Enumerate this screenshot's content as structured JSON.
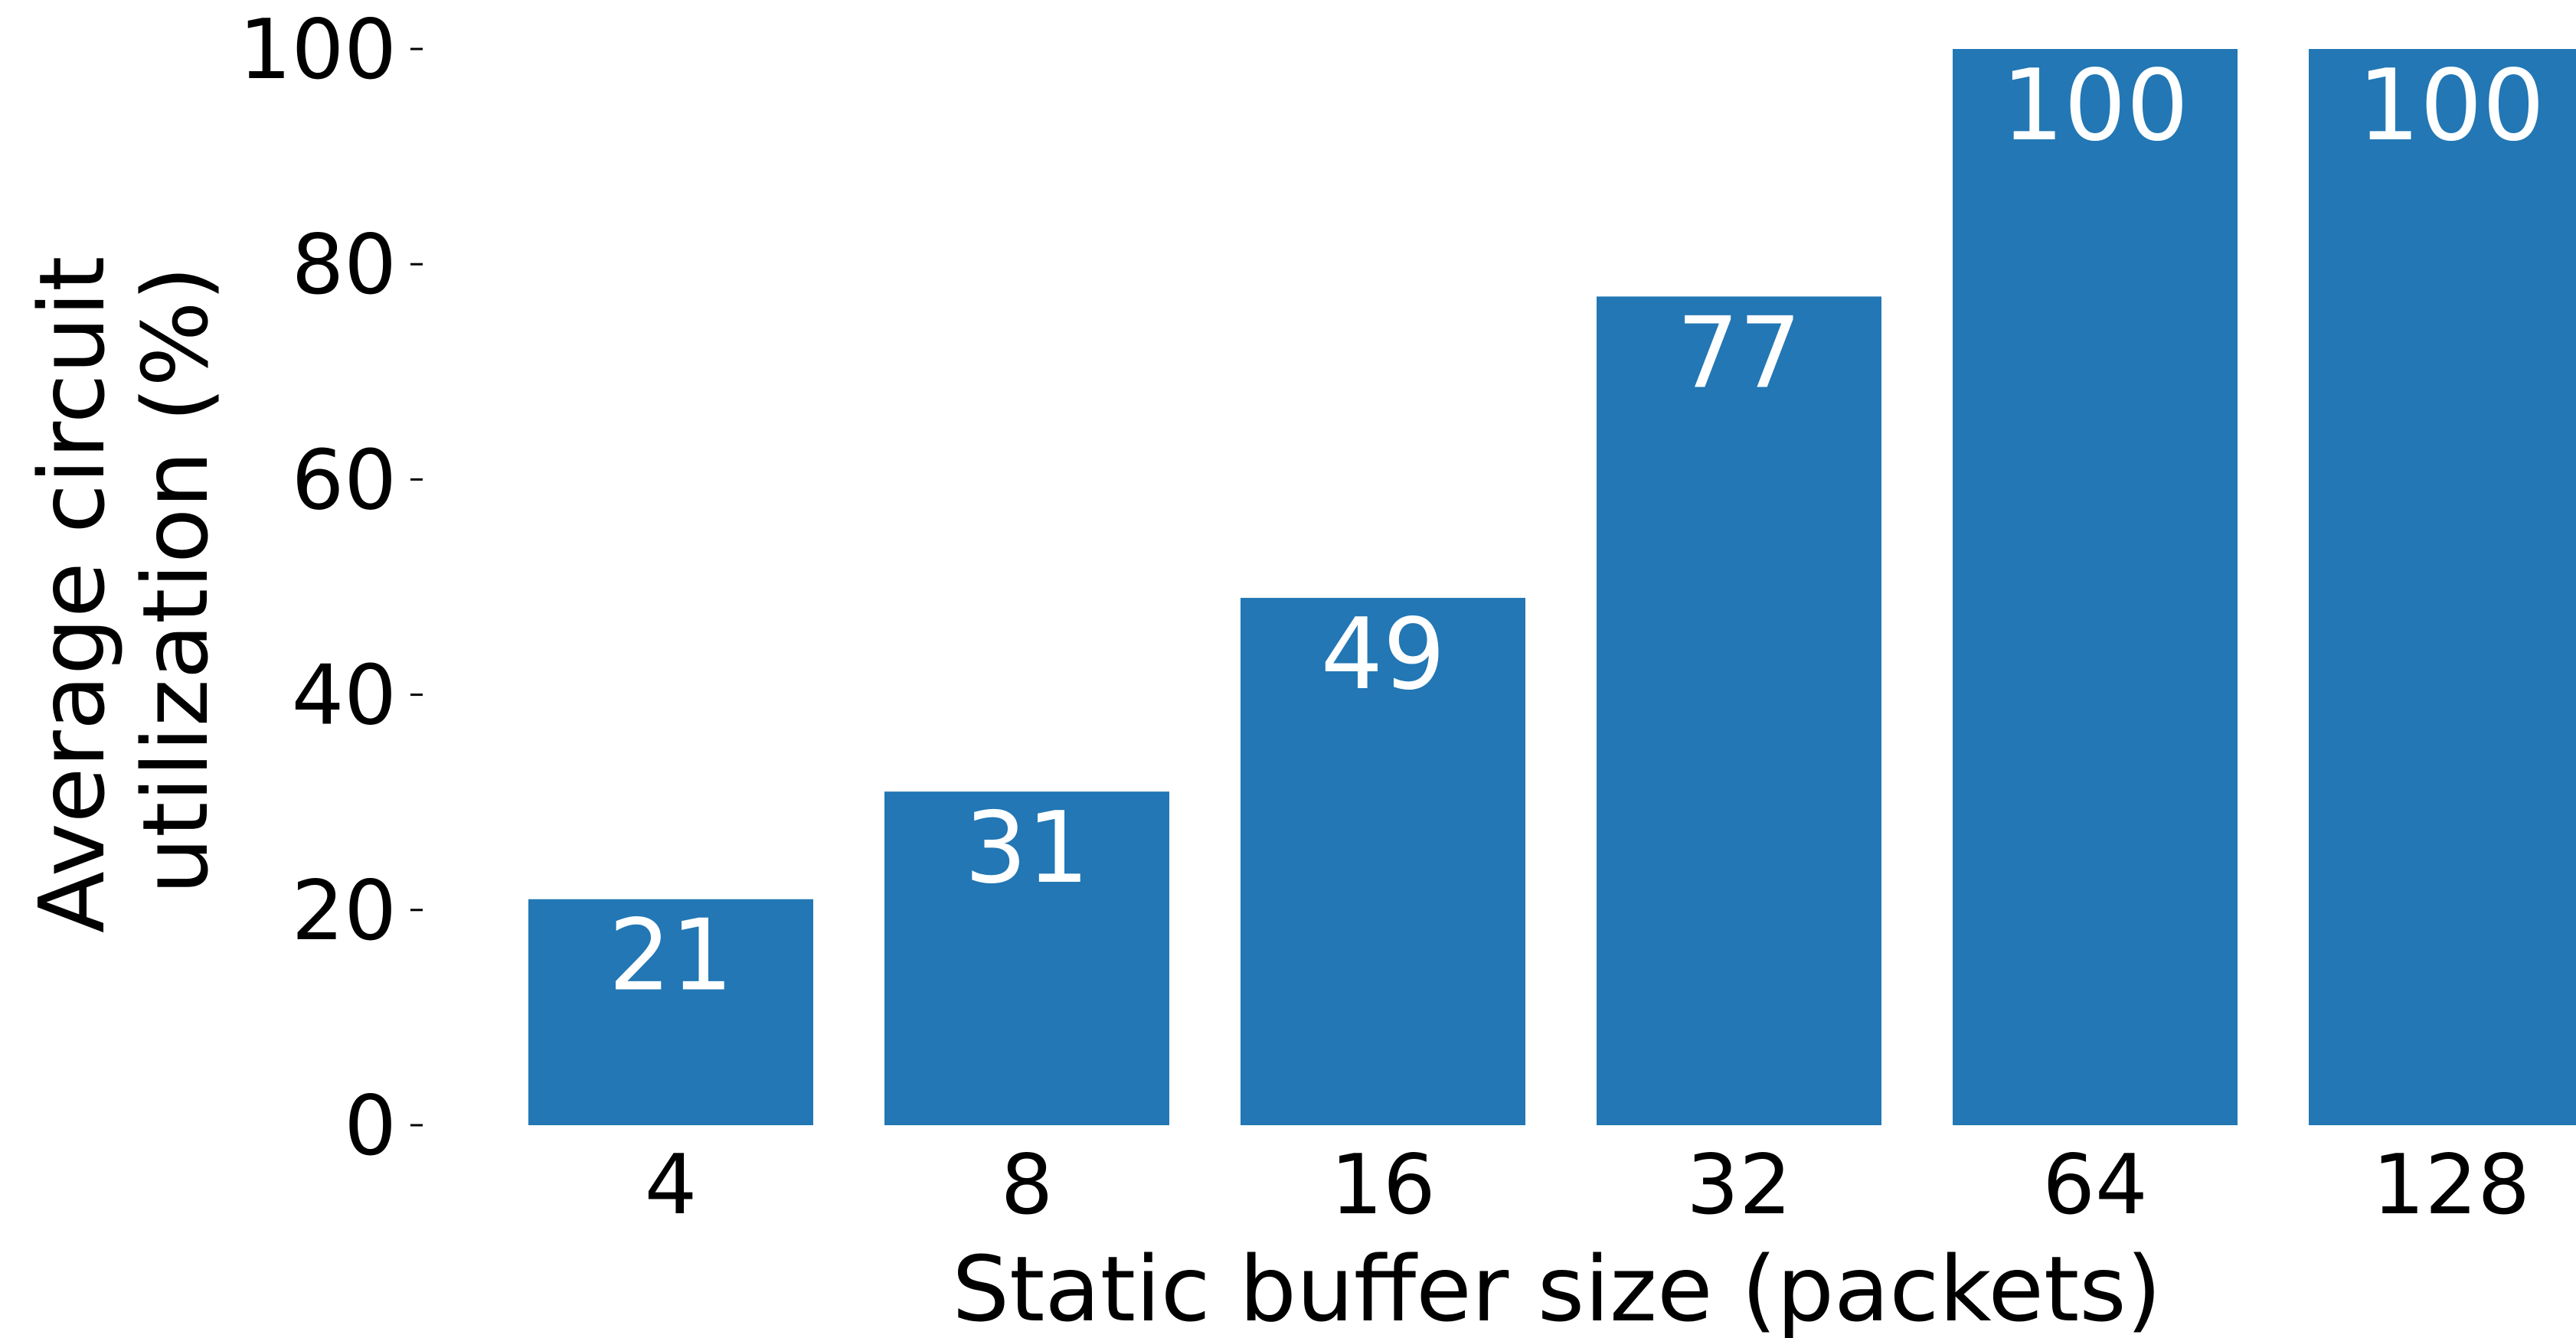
{
  "chart_data": {
    "type": "bar",
    "categories": [
      "4",
      "8",
      "16",
      "32",
      "64",
      "128"
    ],
    "values": [
      21,
      31,
      49,
      77,
      100,
      100
    ],
    "data_labels": [
      "21",
      "31",
      "49",
      "77",
      "100",
      "100"
    ],
    "xlabel": "Static buffer size (packets)",
    "ylabel_lines": [
      "Average circuit",
      "utilization (%)"
    ],
    "ylim": [
      0,
      100
    ],
    "yticks": [
      0,
      20,
      40,
      60,
      80,
      100
    ],
    "ytick_labels": [
      "0",
      "20",
      "40",
      "60",
      "80",
      "100"
    ],
    "grid": false,
    "legend": "none",
    "bar_color": "#2277b4",
    "label_color": "#ffffff",
    "text_color": "#000000"
  }
}
